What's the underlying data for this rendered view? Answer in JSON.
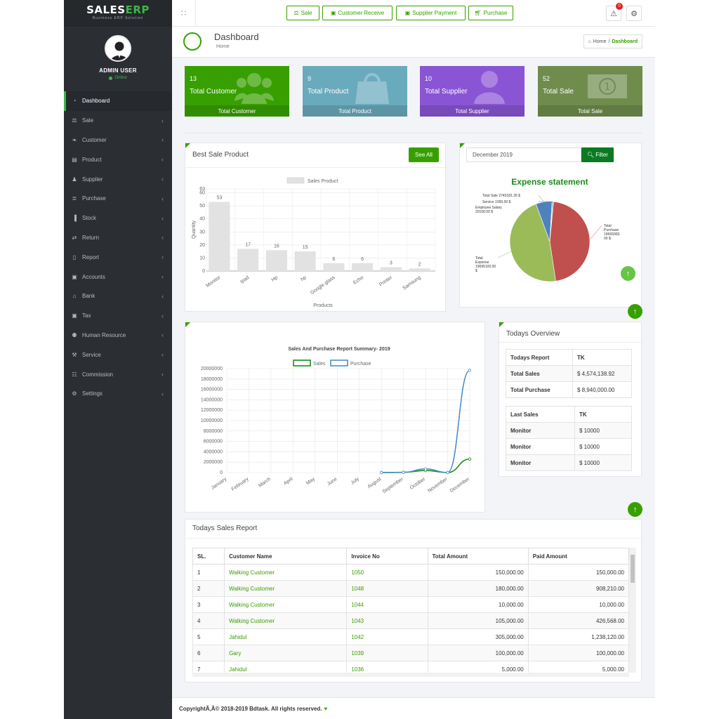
{
  "brand": {
    "name_a": "SALES",
    "name_b": "ERP",
    "tagline": "Business ERP Solution"
  },
  "user": {
    "name": "ADMIN USER",
    "status": "Online"
  },
  "menu": [
    {
      "label": "Dashboard",
      "icon": "dashboard-icon"
    },
    {
      "label": "Sale",
      "icon": "balance-scale-icon"
    },
    {
      "label": "Customer",
      "icon": "handshake-icon"
    },
    {
      "label": "Product",
      "icon": "briefcase-icon"
    },
    {
      "label": "Supplier",
      "icon": "user-icon"
    },
    {
      "label": "Purchase",
      "icon": "cart-icon"
    },
    {
      "label": "Stock",
      "icon": "bar-chart-icon"
    },
    {
      "label": "Return",
      "icon": "exchange-icon"
    },
    {
      "label": "Report",
      "icon": "book-icon"
    },
    {
      "label": "Accounts",
      "icon": "money-icon"
    },
    {
      "label": "Bank",
      "icon": "bank-icon"
    },
    {
      "label": "Tax",
      "icon": "money-icon"
    },
    {
      "label": "Human Resource",
      "icon": "users-icon"
    },
    {
      "label": "Service",
      "icon": "wrench-icon"
    },
    {
      "label": "Commission",
      "icon": "grid-icon"
    },
    {
      "label": "Settings",
      "icon": "gear-icon"
    }
  ],
  "topbar": {
    "quick": [
      "Sale",
      "Customer Receive",
      "Supplier Payment",
      "Purchase"
    ],
    "notif_count": "0"
  },
  "page": {
    "title": "Dashboard",
    "sub": "Home",
    "crumb_home": "Home",
    "crumb_current": "Dashboard"
  },
  "tiles": [
    {
      "num": "13",
      "label": "Total Customer",
      "foot": "Total Customer",
      "color": "#37a000"
    },
    {
      "num": "9",
      "label": "Total Product",
      "foot": "Total Product",
      "color": "#6aaabd"
    },
    {
      "num": "10",
      "label": "Total Supplier",
      "foot": "Total Supplier",
      "color": "#8a55d4"
    },
    {
      "num": "52",
      "label": "Total Sale",
      "foot": "Total Sale",
      "color": "#6f8c4d"
    }
  ],
  "best_sale": {
    "title": "Best Sale Product",
    "see_all": "See All"
  },
  "expense": {
    "month_value": "December 2019",
    "filter_label": "Filter"
  },
  "overview": {
    "title": "Todays Overview",
    "summary": [
      [
        "Todays Report",
        "TK"
      ],
      [
        "Total Sales",
        "$ 4,574,138.92"
      ],
      [
        "Total Purchase",
        "$ 8,940,000.00"
      ]
    ],
    "last": [
      [
        "Last Sales",
        "TK"
      ],
      [
        "Monitor",
        "$ 10000"
      ],
      [
        "Monitor",
        "$ 10000"
      ],
      [
        "Monitor",
        "$ 10000"
      ]
    ]
  },
  "sales_report": {
    "title": "Todays Sales Report",
    "headers": [
      "SL.",
      "Customer Name",
      "Invoice No",
      "Total Amount",
      "Paid Amount"
    ],
    "rows": [
      [
        "1",
        "Walking Customer",
        "1050",
        "150,000.00",
        "150,000.00"
      ],
      [
        "2",
        "Walking Customer",
        "1048",
        "180,000.00",
        "908,210.00"
      ],
      [
        "3",
        "Walking Customer",
        "1044",
        "10,000.00",
        "10,000.00"
      ],
      [
        "4",
        "Walking Customer",
        "1043",
        "105,000.00",
        "426,568.00"
      ],
      [
        "5",
        "Jahidul",
        "1042",
        "305,000.00",
        "1,238,120.00"
      ],
      [
        "6",
        "Gary",
        "1039",
        "100,000.00",
        "100,000.00"
      ],
      [
        "7",
        "Jahidul",
        "1036",
        "5,000.00",
        "5,000.00"
      ]
    ]
  },
  "footer": {
    "text": "CopyrightÃ‚Â© 2018-2019 Bdtask. All rights reserved."
  },
  "chart_data": [
    {
      "type": "bar",
      "legend": "Sales Product",
      "categories": [
        "Monitor",
        "Ipad",
        "Hp",
        "hp",
        "Google glass",
        "Echo",
        "Printer",
        "Samsung"
      ],
      "values": [
        53,
        17,
        16,
        15,
        6,
        6,
        3,
        2
      ],
      "xlabel": "Products",
      "ylabel": "Quantity",
      "yticks": [
        "0",
        "10",
        "20",
        "30",
        "40",
        "50",
        "60",
        "63"
      ],
      "ylim": [
        0,
        63
      ],
      "color": "#e2e2e2"
    },
    {
      "type": "pie",
      "title": "Expense statement",
      "slices": [
        {
          "label": "Total Purchase 19665000.00 $",
          "value": 19665000,
          "color": "#c0504d"
        },
        {
          "label": "Total Expense 19695100.00 $",
          "value": 19695100,
          "color": "#9bbb59"
        },
        {
          "label": "Total Sale 2745181.26 $",
          "value": 2745181.26,
          "color": "#4f81bd"
        },
        {
          "label": "Service 1000.00 $",
          "value": 1000,
          "color": "#4f81bd"
        },
        {
          "label": "Employee Salary 20100.00 $",
          "value": 20100,
          "color": "#4f81bd"
        }
      ]
    },
    {
      "type": "line",
      "title": "Sales And Purchase Report Summary- 2019",
      "categories": [
        "January",
        "February",
        "March",
        "April",
        "May",
        "June",
        "July",
        "August",
        "September",
        "October",
        "November",
        "December"
      ],
      "yticks": [
        "0",
        "2000000",
        "4000000",
        "6000000",
        "8000000",
        "10000000",
        "12000000",
        "14000000",
        "16000000",
        "18000000",
        "20000000"
      ],
      "ylim": [
        0,
        20000000
      ],
      "series": [
        {
          "name": "Sales",
          "color": "#1a8c1a",
          "values": [
            null,
            null,
            null,
            null,
            null,
            null,
            null,
            0,
            50000,
            400000,
            0,
            2600000
          ]
        },
        {
          "name": "Purchase",
          "color": "#4a90c8",
          "values": [
            null,
            null,
            null,
            null,
            null,
            null,
            null,
            0,
            30000,
            700000,
            0,
            19665000
          ]
        }
      ]
    }
  ]
}
